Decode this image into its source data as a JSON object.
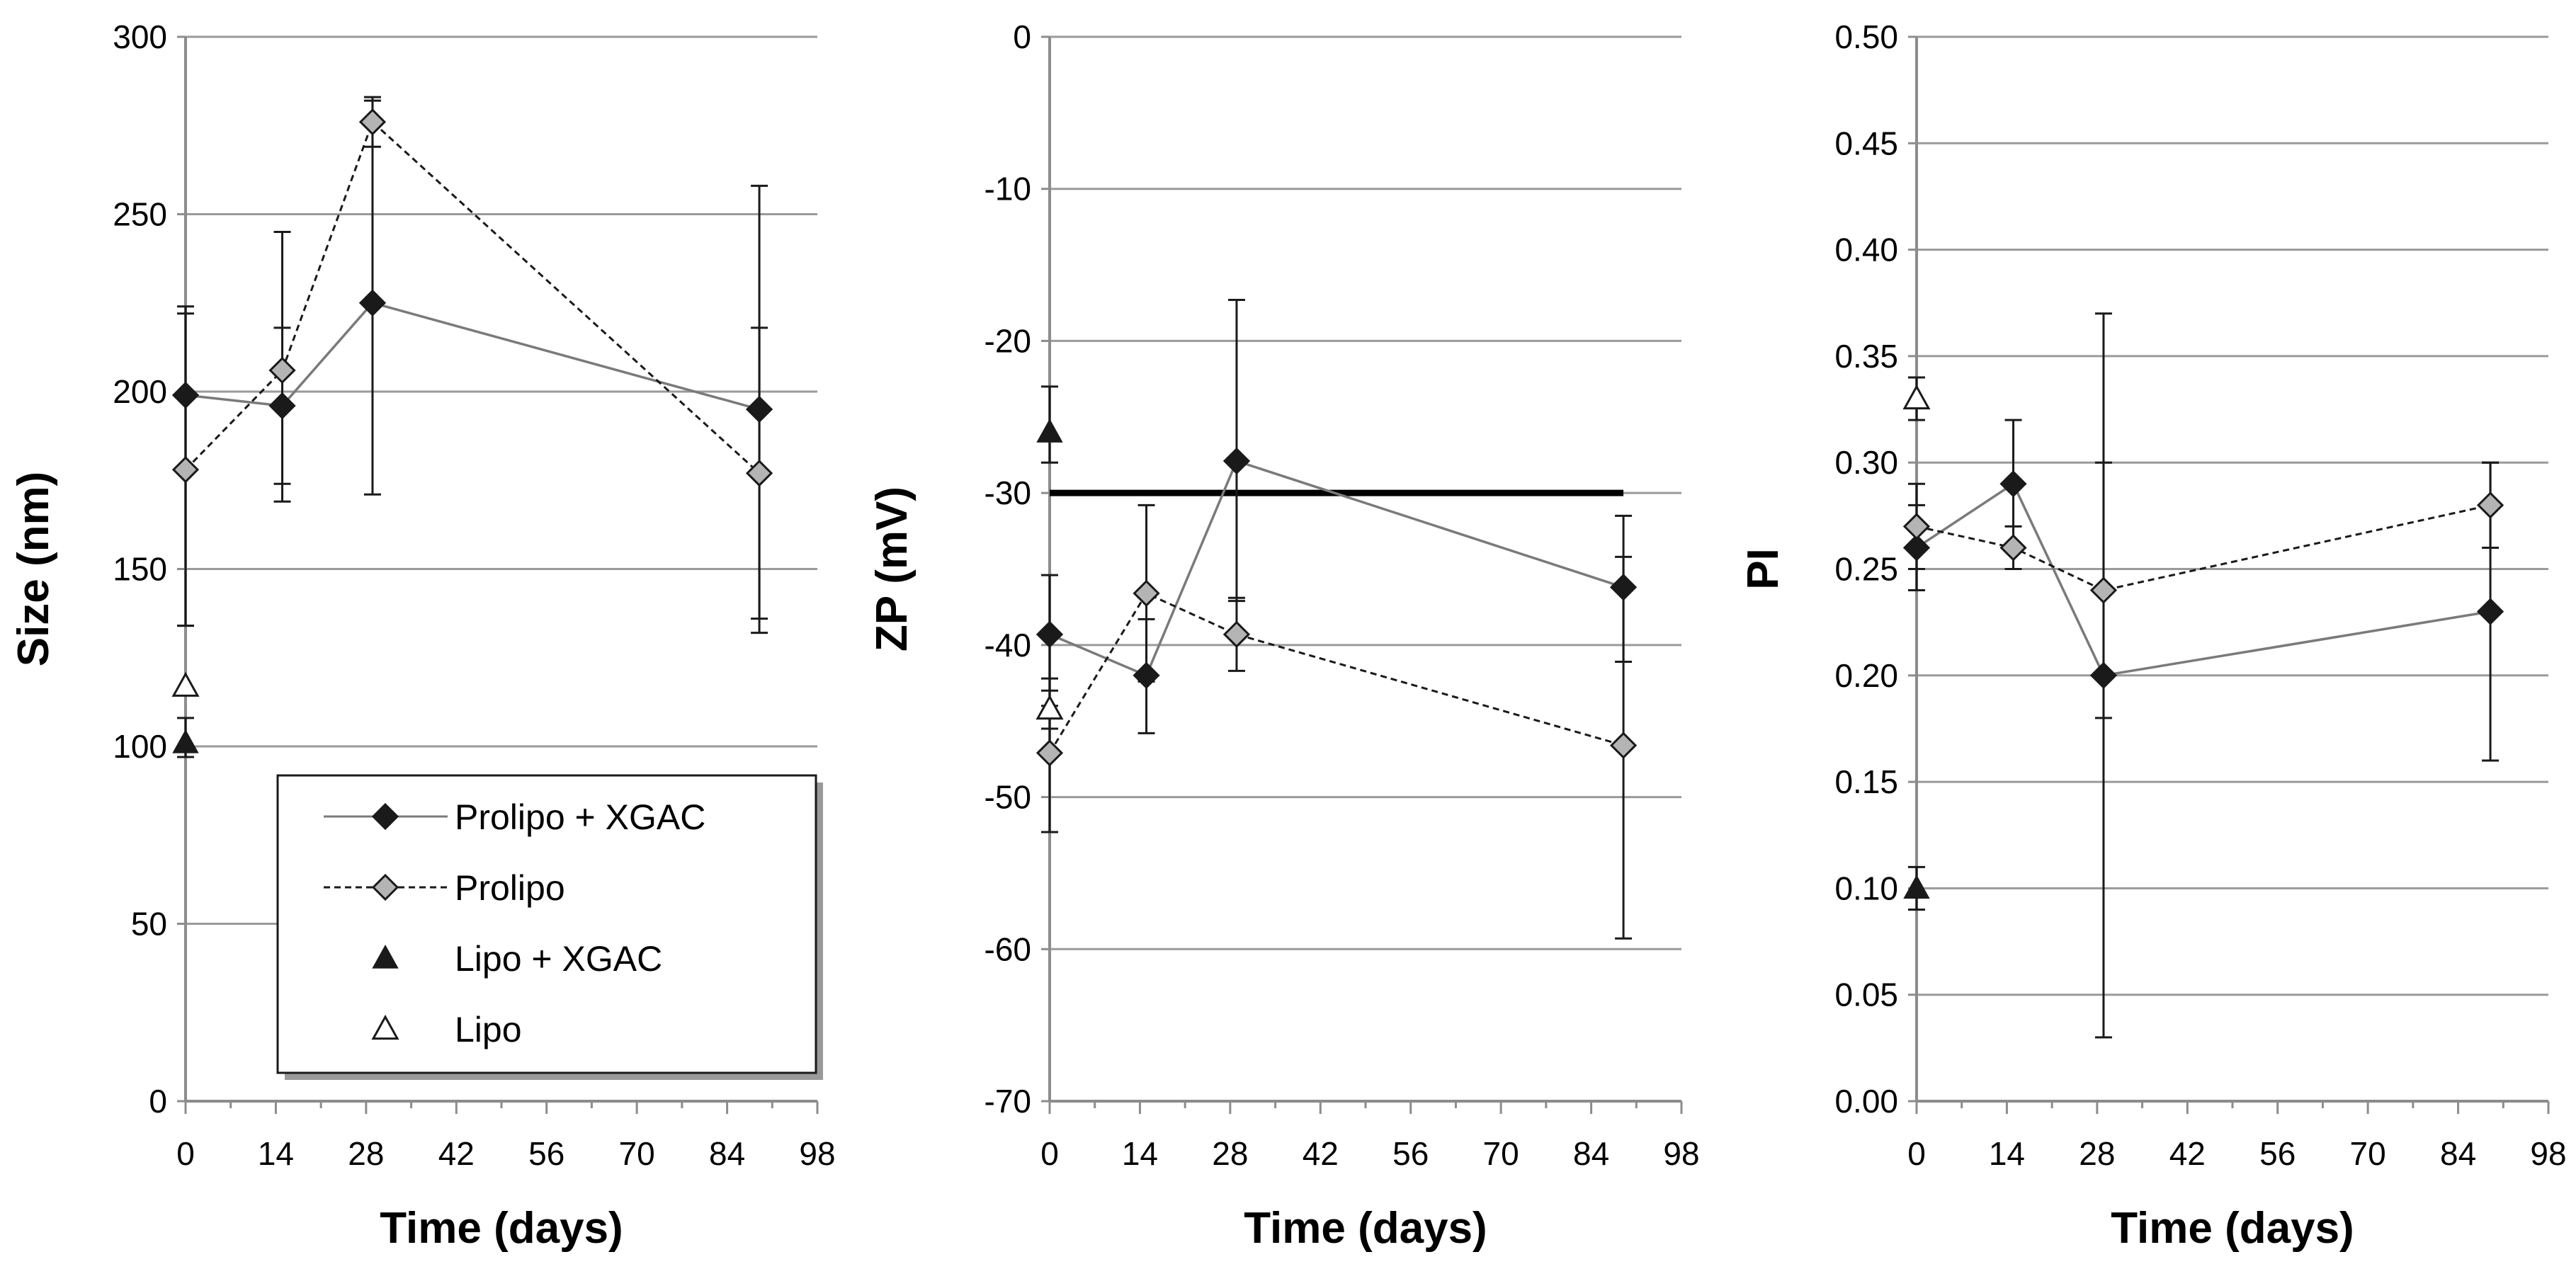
{
  "legend": {
    "entries": [
      {
        "key": "prolipo_xgac",
        "label": "Prolipo + XGAC"
      },
      {
        "key": "prolipo",
        "label": "Prolipo"
      },
      {
        "key": "lipo_xgac",
        "label": "Lipo + XGAC"
      },
      {
        "key": "lipo",
        "label": "Lipo"
      }
    ]
  },
  "colors": {
    "grid": "#9a9a9a",
    "axis": "#8c8c8c",
    "series_line": "#7a7a7a",
    "marker_dark": "#1a1a1a",
    "marker_light": "#b4b4b4",
    "threshold": "#000000"
  },
  "chart_data": [
    {
      "id": "size",
      "type": "line",
      "title": "",
      "xlabel": "Time (days)",
      "ylabel": "Size (nm)",
      "xlim": [
        0,
        98
      ],
      "ylim": [
        0,
        300
      ],
      "xticks": [
        0,
        14,
        28,
        42,
        56,
        70,
        84,
        98
      ],
      "yticks": [
        0,
        50,
        100,
        150,
        200,
        250,
        300
      ],
      "ytick_labels": [
        "0",
        "50",
        "100",
        "150",
        "200",
        "250",
        "300"
      ],
      "grid": true,
      "legend_position": "bottom-right",
      "series": [
        {
          "key": "prolipo_xgac",
          "name": "Prolipo + XGAC",
          "style": "solid",
          "marker": "diamond-dark",
          "x": [
            0,
            15,
            29,
            89
          ],
          "values": [
            199,
            196,
            225,
            195
          ],
          "err_low": [
            134,
            169,
            171,
            132
          ],
          "err_high": [
            224,
            218,
            282,
            218
          ]
        },
        {
          "key": "prolipo",
          "name": "Prolipo",
          "style": "dashed",
          "marker": "diamond-light",
          "x": [
            0,
            15,
            29,
            89
          ],
          "values": [
            178,
            206,
            276,
            177
          ],
          "err_low": [
            134,
            174,
            269,
            136
          ],
          "err_high": [
            222,
            245,
            283,
            258
          ]
        },
        {
          "key": "lipo_xgac",
          "name": "Lipo + XGAC",
          "style": "none",
          "marker": "triangle-dark",
          "x": [
            0
          ],
          "values": [
            101
          ],
          "err_low": [
            97
          ],
          "err_high": [
            108
          ]
        },
        {
          "key": "lipo",
          "name": "Lipo",
          "style": "none",
          "marker": "triangle-open",
          "x": [
            0
          ],
          "values": [
            117
          ],
          "err_low": [
            117
          ],
          "err_high": [
            117
          ]
        }
      ]
    },
    {
      "id": "zp",
      "type": "line",
      "title": "",
      "xlabel": "Time (days)",
      "ylabel": "ZP (mV)",
      "xlim": [
        0,
        98
      ],
      "ylim": [
        -70,
        0
      ],
      "xticks": [
        0,
        14,
        28,
        42,
        56,
        70,
        84,
        98
      ],
      "yticks": [
        -70,
        -60,
        -50,
        -40,
        -30,
        -20,
        -10,
        0
      ],
      "ytick_labels": [
        "-70",
        "-60",
        "-50",
        "-40",
        "-30",
        "-20",
        "-10",
        "0"
      ],
      "grid": true,
      "reference_line": {
        "y": -30,
        "x_start": 0,
        "x_end": 89
      },
      "series": [
        {
          "key": "prolipo_xgac",
          "name": "Prolipo + XGAC",
          "style": "solid",
          "marker": "diamond-dark",
          "x": [
            0,
            15,
            29,
            89
          ],
          "values": [
            -39.3,
            -42.0,
            -27.9,
            -36.2
          ],
          "err_low": [
            -44.0,
            -45.8,
            -37.1,
            -41.1
          ],
          "err_high": [
            -35.4,
            -38.3,
            -17.3,
            -31.5
          ]
        },
        {
          "key": "prolipo",
          "name": "Prolipo",
          "style": "dashed",
          "marker": "diamond-light",
          "x": [
            0,
            15,
            29,
            89
          ],
          "values": [
            -47.1,
            -36.6,
            -39.3,
            -46.6
          ],
          "err_low": [
            -52.3,
            -42.4,
            -41.7,
            -59.3
          ],
          "err_high": [
            -42.2,
            -30.8,
            -36.9,
            -34.2
          ]
        },
        {
          "key": "lipo_xgac",
          "name": "Lipo + XGAC",
          "style": "none",
          "marker": "triangle-dark",
          "x": [
            0
          ],
          "values": [
            -26.0
          ],
          "err_low": [
            -28.0
          ],
          "err_high": [
            -23.0
          ]
        },
        {
          "key": "lipo",
          "name": "Lipo",
          "style": "none",
          "marker": "triangle-open",
          "x": [
            0
          ],
          "values": [
            -44.2
          ],
          "err_low": [
            -45.5
          ],
          "err_high": [
            -43.0
          ]
        }
      ]
    },
    {
      "id": "pi",
      "type": "line",
      "title": "",
      "xlabel": "Time (days)",
      "ylabel": "PI",
      "xlim": [
        0,
        98
      ],
      "ylim": [
        0,
        0.5
      ],
      "xticks": [
        0,
        14,
        28,
        42,
        56,
        70,
        84,
        98
      ],
      "yticks": [
        0,
        0.05,
        0.1,
        0.15,
        0.2,
        0.25,
        0.3,
        0.35,
        0.4,
        0.45,
        0.5
      ],
      "ytick_labels": [
        "0.00",
        "0.05",
        "0.10",
        "0.15",
        "0.20",
        "0.25",
        "0.30",
        "0.35",
        "0.40",
        "0.45",
        "0.50"
      ],
      "grid": true,
      "series": [
        {
          "key": "prolipo_xgac",
          "name": "Prolipo + XGAC",
          "style": "solid",
          "marker": "diamond-dark",
          "x": [
            0,
            15,
            29,
            89
          ],
          "values": [
            0.26,
            0.29,
            0.2,
            0.23
          ],
          "err_low": [
            0.24,
            0.26,
            0.03,
            0.16
          ],
          "err_high": [
            0.28,
            0.32,
            0.37,
            0.3
          ]
        },
        {
          "key": "prolipo",
          "name": "Prolipo",
          "style": "dashed",
          "marker": "diamond-light",
          "x": [
            0,
            15,
            29,
            89
          ],
          "values": [
            0.27,
            0.26,
            0.24,
            0.28
          ],
          "err_low": [
            0.25,
            0.25,
            0.18,
            0.26
          ],
          "err_high": [
            0.29,
            0.27,
            0.3,
            0.3
          ]
        },
        {
          "key": "lipo_xgac",
          "name": "Lipo + XGAC",
          "style": "none",
          "marker": "triangle-dark",
          "x": [
            0
          ],
          "values": [
            0.1
          ],
          "err_low": [
            0.09
          ],
          "err_high": [
            0.11
          ]
        },
        {
          "key": "lipo",
          "name": "Lipo",
          "style": "none",
          "marker": "triangle-open",
          "x": [
            0
          ],
          "values": [
            0.33
          ],
          "err_low": [
            0.32
          ],
          "err_high": [
            0.34
          ]
        }
      ]
    }
  ]
}
